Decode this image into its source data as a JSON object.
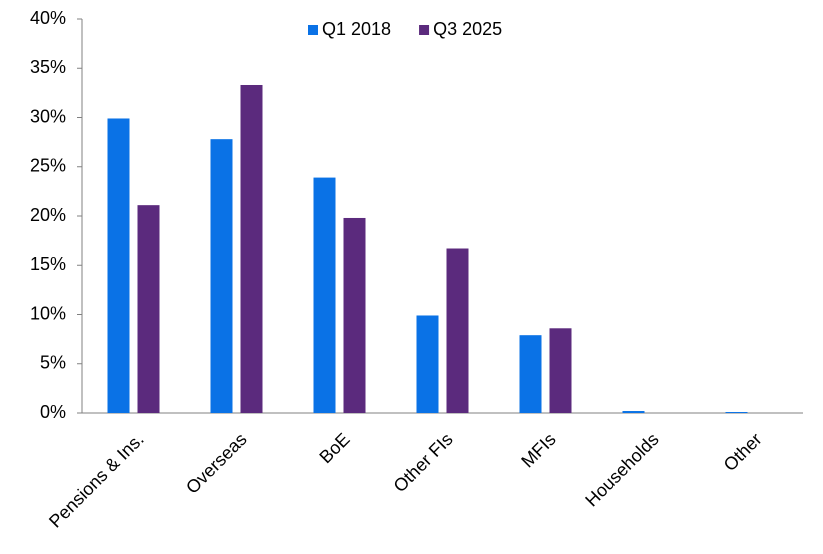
{
  "chart_data": {
    "type": "bar",
    "categories": [
      "Pensions & Ins.",
      "Overseas",
      "BoE",
      "Other FIs",
      "MFIs",
      "Households",
      "Other"
    ],
    "series": [
      {
        "name": "Q1 2018",
        "color": "#0a72e6",
        "values": [
          29.9,
          27.8,
          23.9,
          9.9,
          7.9,
          0.2,
          0.1
        ]
      },
      {
        "name": "Q3 2025",
        "color": "#5b2a7d",
        "values": [
          21.1,
          33.3,
          19.8,
          16.7,
          8.6,
          0.0,
          0.0
        ]
      }
    ],
    "ylim": [
      0,
      40
    ],
    "yticks": [
      {
        "value": 0,
        "label": "0%"
      },
      {
        "value": 5,
        "label": "5%"
      },
      {
        "value": 10,
        "label": "10%"
      },
      {
        "value": 15,
        "label": "15%"
      },
      {
        "value": 20,
        "label": "20%"
      },
      {
        "value": 25,
        "label": "25%"
      },
      {
        "value": 30,
        "label": "30%"
      },
      {
        "value": 35,
        "label": "35%"
      },
      {
        "value": 40,
        "label": "40%"
      }
    ],
    "grid": false,
    "legend": "top"
  }
}
